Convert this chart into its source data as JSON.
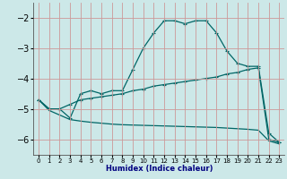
{
  "xlabel": "Humidex (Indice chaleur)",
  "background_color": "#cce8e8",
  "grid_color": "#cc9999",
  "line_color": "#006666",
  "xlim": [
    -0.5,
    23.5
  ],
  "ylim": [
    -6.5,
    -1.5
  ],
  "yticks": [
    -6,
    -5,
    -4,
    -3,
    -2
  ],
  "xticks": [
    0,
    1,
    2,
    3,
    4,
    5,
    6,
    7,
    8,
    9,
    10,
    11,
    12,
    13,
    14,
    15,
    16,
    17,
    18,
    19,
    20,
    21,
    22,
    23
  ],
  "y_main": [
    -4.7,
    -5.0,
    -5.0,
    -5.3,
    -4.5,
    -4.4,
    -4.5,
    -4.4,
    -4.4,
    -3.7,
    -3.0,
    -2.5,
    -2.1,
    -2.1,
    -2.2,
    -2.1,
    -2.1,
    -2.5,
    -3.1,
    -3.5,
    -3.6,
    -3.6,
    -5.8,
    -6.1
  ],
  "y_upper": [
    -4.7,
    -5.0,
    -5.0,
    -4.85,
    -4.7,
    -4.65,
    -4.6,
    -4.55,
    -4.5,
    -4.4,
    -4.35,
    -4.25,
    -4.2,
    -4.15,
    -4.1,
    -4.05,
    -4.0,
    -3.95,
    -3.85,
    -3.8,
    -3.7,
    -3.65,
    -6.0,
    -6.1
  ],
  "y_lower": [
    -4.7,
    -5.05,
    -5.2,
    -5.35,
    -5.4,
    -5.44,
    -5.47,
    -5.5,
    -5.52,
    -5.53,
    -5.54,
    -5.55,
    -5.56,
    -5.57,
    -5.58,
    -5.59,
    -5.6,
    -5.61,
    -5.63,
    -5.65,
    -5.67,
    -5.7,
    -6.05,
    -6.15
  ],
  "xlabel_color": "#000080",
  "xlabel_fontsize": 6.0,
  "ytick_fontsize": 7.0,
  "xtick_fontsize": 5.0
}
